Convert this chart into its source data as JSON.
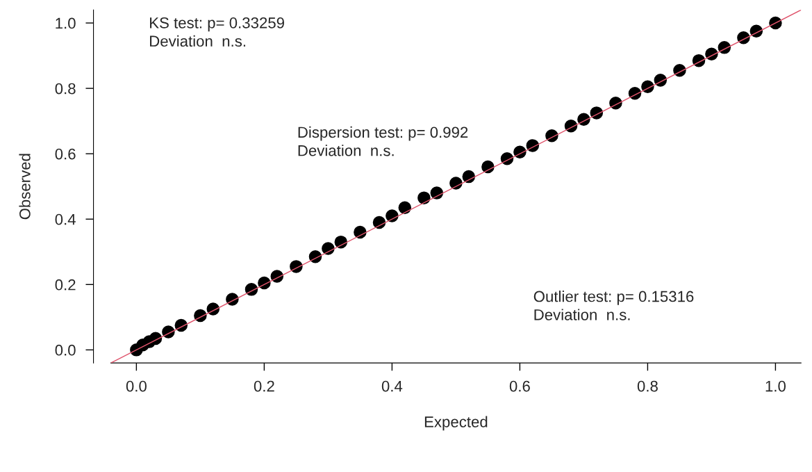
{
  "chart_data": {
    "type": "scatter",
    "xlabel": "Expected",
    "ylabel": "Observed",
    "xlim": [
      -0.04,
      1.04
    ],
    "ylim": [
      -0.04,
      1.04
    ],
    "xticks": [
      {
        "value": 0,
        "label": "0.0"
      },
      0.2,
      0.4,
      0.6,
      0.8,
      {
        "value": 1,
        "label": "1.0"
      }
    ],
    "yticks": [
      {
        "value": 0,
        "label": "0.0"
      },
      0.2,
      0.4,
      0.6,
      0.8,
      {
        "value": 1,
        "label": "1.0"
      }
    ],
    "grid": false,
    "marker": "circle",
    "series": [
      {
        "color": "#000000",
        "x": [
          0,
          0.01,
          0.02,
          0.03,
          0.05,
          0.07,
          0.1,
          0.12,
          0.15,
          0.18,
          0.2,
          0.22,
          0.25,
          0.28,
          0.3,
          0.32,
          0.35,
          0.38,
          0.4,
          0.42,
          0.45,
          0.47,
          0.5,
          0.52,
          0.55,
          0.58,
          0.6,
          0.62,
          0.65,
          0.68,
          0.7,
          0.72,
          0.75,
          0.78,
          0.8,
          0.82,
          0.85,
          0.88,
          0.9,
          0.92,
          0.95,
          0.97,
          1
        ],
        "values": [
          0,
          0.015,
          0.025,
          0.035,
          0.055,
          0.075,
          0.105,
          0.125,
          0.155,
          0.185,
          0.205,
          0.225,
          0.255,
          0.285,
          0.31,
          0.33,
          0.36,
          0.39,
          0.41,
          0.435,
          0.465,
          0.48,
          0.51,
          0.53,
          0.56,
          0.585,
          0.605,
          0.625,
          0.655,
          0.685,
          0.705,
          0.725,
          0.755,
          0.785,
          0.805,
          0.825,
          0.855,
          0.885,
          0.905,
          0.925,
          0.955,
          0.975,
          1
        ]
      },
      {
        "type": "line",
        "marker": "none",
        "color": "#df536b",
        "x": [
          -0.04,
          1.04
        ],
        "values": [
          -0.04,
          1.04
        ]
      }
    ],
    "annotations": [
      "KS test: p= 0.33259\nDeviation  n.s.",
      "Dispersion test: p= 0.992\nDeviation  n.s.",
      "Outlier test: p= 0.15316\nDeviation  n.s."
    ]
  }
}
